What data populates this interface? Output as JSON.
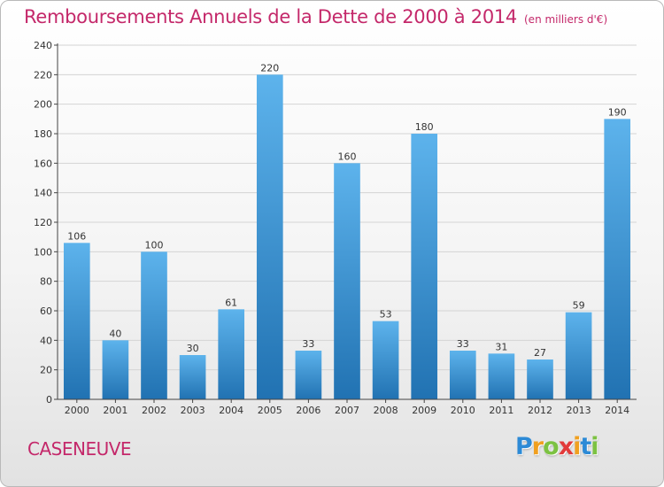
{
  "title": "Remboursements Annuels de la Dette de 2000 à 2014",
  "title_unit": "(en milliers d'€)",
  "commune": "CASENEUVE",
  "logo": {
    "letters": [
      "P",
      "r",
      "o",
      "x",
      "i",
      "t",
      "i"
    ],
    "colors": [
      "#2c8ad6",
      "#f0a020",
      "#7cc242",
      "#e23a3a",
      "#f0a020",
      "#2c8ad6",
      "#7cc242"
    ]
  },
  "colors": {
    "title": "#c4286a",
    "bar_top": "#5db3ec",
    "bar_bottom": "#2172b2",
    "grid": "#d4d4d4",
    "axis": "#444444"
  },
  "chart_data": {
    "type": "bar",
    "title": "Remboursements Annuels de la Dette de 2000 à 2014",
    "xlabel": "",
    "ylabel": "",
    "ylim": [
      0,
      240
    ],
    "yticks": [
      0,
      20,
      40,
      60,
      80,
      100,
      120,
      140,
      160,
      180,
      200,
      220,
      240
    ],
    "grid": true,
    "categories": [
      "2000",
      "2001",
      "2002",
      "2003",
      "2004",
      "2005",
      "2006",
      "2007",
      "2008",
      "2009",
      "2010",
      "2011",
      "2012",
      "2013",
      "2014"
    ],
    "values": [
      106,
      40,
      100,
      30,
      61,
      220,
      33,
      160,
      53,
      180,
      33,
      31,
      27,
      59,
      190
    ]
  }
}
